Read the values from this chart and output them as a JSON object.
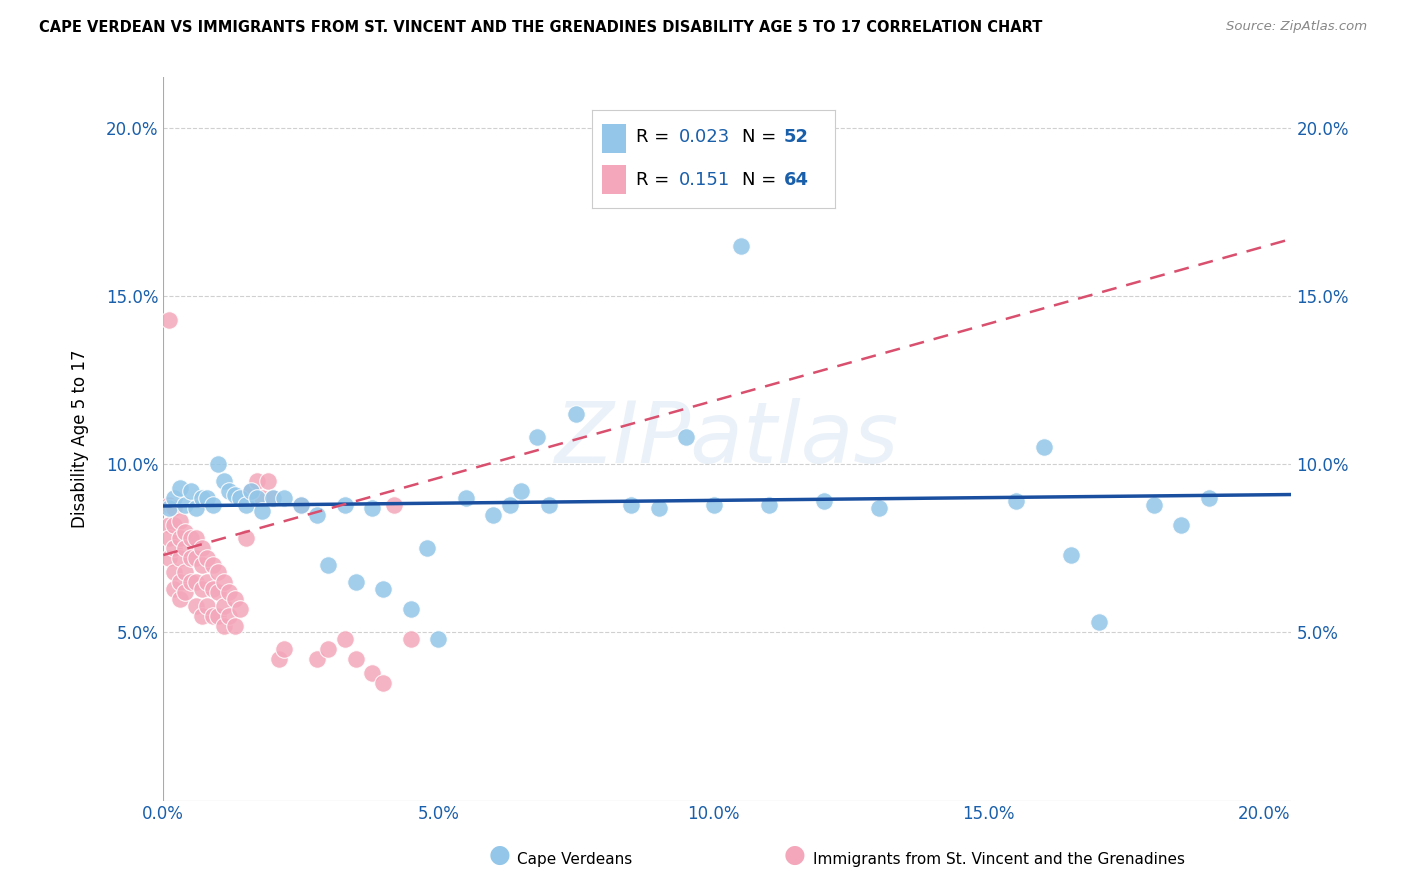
{
  "title": "CAPE VERDEAN VS IMMIGRANTS FROM ST. VINCENT AND THE GRENADINES DISABILITY AGE 5 TO 17 CORRELATION CHART",
  "source": "Source: ZipAtlas.com",
  "ylabel": "Disability Age 5 to 17",
  "xlim": [
    0.0,
    0.205
  ],
  "ylim": [
    0.0,
    0.215
  ],
  "xticks": [
    0.0,
    0.05,
    0.1,
    0.15,
    0.2
  ],
  "yticks": [
    0.05,
    0.1,
    0.15,
    0.2
  ],
  "xticklabels": [
    "0.0%",
    "5.0%",
    "10.0%",
    "15.0%",
    "20.0%"
  ],
  "yticklabels": [
    "5.0%",
    "10.0%",
    "15.0%",
    "20.0%"
  ],
  "color_blue": "#93c6e8",
  "color_pink": "#f4a7ba",
  "color_line_blue": "#1a4fa0",
  "color_line_pink": "#d94f6e",
  "color_grid": "#d0d0d0",
  "background_color": "#ffffff",
  "blue_x": [
    0.001,
    0.002,
    0.003,
    0.004,
    0.005,
    0.006,
    0.007,
    0.008,
    0.009,
    0.01,
    0.011,
    0.012,
    0.013,
    0.014,
    0.015,
    0.016,
    0.017,
    0.018,
    0.02,
    0.022,
    0.025,
    0.028,
    0.03,
    0.033,
    0.035,
    0.038,
    0.04,
    0.045,
    0.048,
    0.05,
    0.055,
    0.06,
    0.063,
    0.065,
    0.068,
    0.07,
    0.075,
    0.085,
    0.09,
    0.095,
    0.1,
    0.105,
    0.11,
    0.12,
    0.13,
    0.155,
    0.16,
    0.165,
    0.17,
    0.18,
    0.185,
    0.19
  ],
  "blue_y": [
    0.087,
    0.09,
    0.093,
    0.088,
    0.092,
    0.087,
    0.09,
    0.09,
    0.088,
    0.1,
    0.095,
    0.092,
    0.091,
    0.09,
    0.088,
    0.092,
    0.09,
    0.086,
    0.09,
    0.09,
    0.088,
    0.085,
    0.07,
    0.088,
    0.065,
    0.087,
    0.063,
    0.057,
    0.075,
    0.048,
    0.09,
    0.085,
    0.088,
    0.092,
    0.108,
    0.088,
    0.115,
    0.088,
    0.087,
    0.108,
    0.088,
    0.165,
    0.088,
    0.089,
    0.087,
    0.089,
    0.105,
    0.073,
    0.053,
    0.088,
    0.082,
    0.09
  ],
  "pink_x": [
    0.001,
    0.001,
    0.001,
    0.001,
    0.002,
    0.002,
    0.002,
    0.002,
    0.002,
    0.003,
    0.003,
    0.003,
    0.003,
    0.003,
    0.004,
    0.004,
    0.004,
    0.004,
    0.005,
    0.005,
    0.005,
    0.006,
    0.006,
    0.006,
    0.006,
    0.007,
    0.007,
    0.007,
    0.007,
    0.008,
    0.008,
    0.008,
    0.009,
    0.009,
    0.009,
    0.01,
    0.01,
    0.01,
    0.011,
    0.011,
    0.011,
    0.012,
    0.012,
    0.013,
    0.013,
    0.014,
    0.015,
    0.016,
    0.017,
    0.018,
    0.019,
    0.02,
    0.021,
    0.022,
    0.025,
    0.028,
    0.03,
    0.033,
    0.035,
    0.038,
    0.04,
    0.042,
    0.045,
    0.001
  ],
  "pink_y": [
    0.088,
    0.082,
    0.078,
    0.072,
    0.087,
    0.082,
    0.075,
    0.068,
    0.063,
    0.083,
    0.078,
    0.072,
    0.065,
    0.06,
    0.08,
    0.075,
    0.068,
    0.062,
    0.078,
    0.072,
    0.065,
    0.078,
    0.072,
    0.065,
    0.058,
    0.075,
    0.07,
    0.063,
    0.055,
    0.072,
    0.065,
    0.058,
    0.07,
    0.063,
    0.055,
    0.068,
    0.062,
    0.055,
    0.065,
    0.058,
    0.052,
    0.062,
    0.055,
    0.06,
    0.052,
    0.057,
    0.078,
    0.092,
    0.095,
    0.09,
    0.095,
    0.09,
    0.042,
    0.045,
    0.088,
    0.042,
    0.045,
    0.048,
    0.042,
    0.038,
    0.035,
    0.088,
    0.048,
    0.143
  ],
  "blue_line_x0": 0.0,
  "blue_line_x1": 0.205,
  "blue_line_y0": 0.0876,
  "blue_line_y1": 0.091,
  "pink_line_x0": 0.0,
  "pink_line_x1": 0.205,
  "pink_line_y0": 0.073,
  "pink_line_y1": 0.167
}
